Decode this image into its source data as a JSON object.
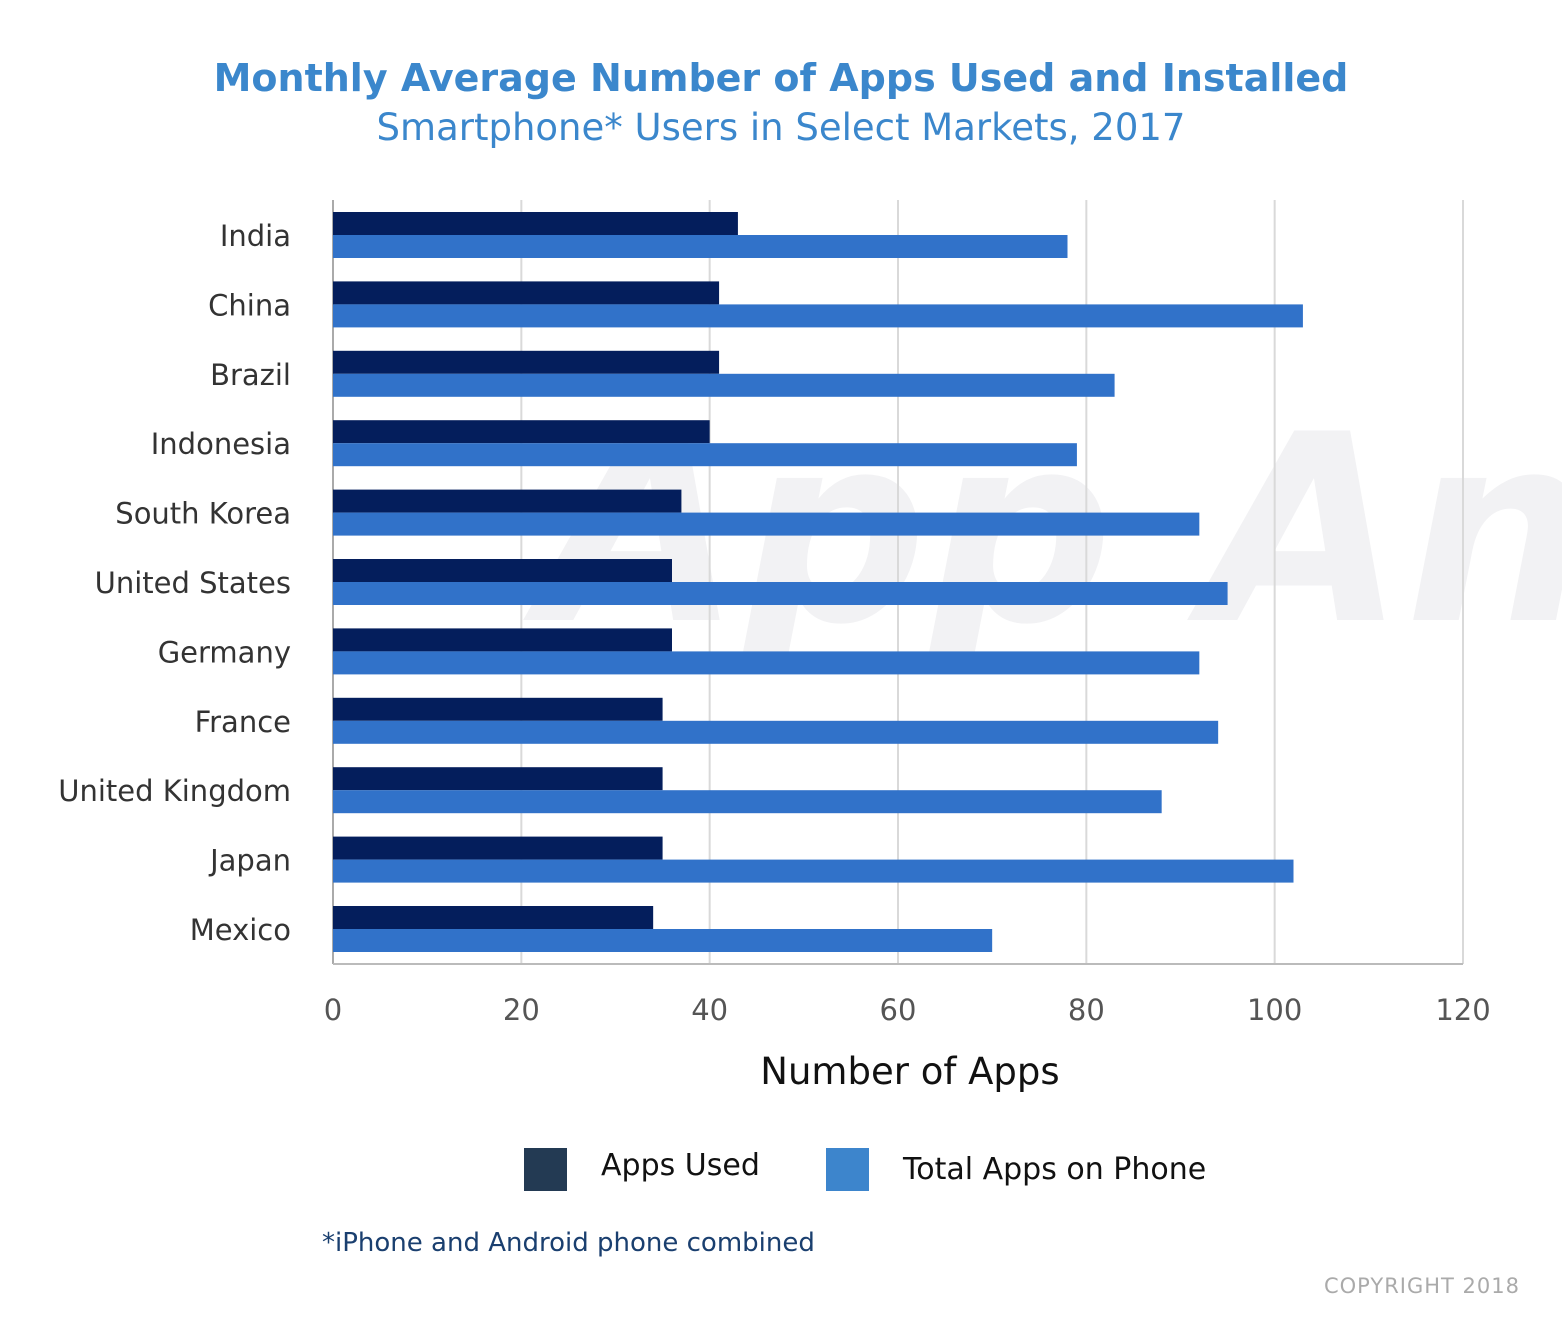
{
  "title": "Monthly Average Number of Apps Used and Installed",
  "subtitle": "Smartphone* Users in Select Markets, 2017",
  "footnote": "*iPhone and Android phone combined",
  "copyright": "COPYRIGHT 2018",
  "watermark": "App Annie",
  "colors": {
    "used": "#041e5c",
    "total": "#3172c9",
    "legend_used": "#233a53",
    "legend_total": "#3d85cc"
  },
  "chart_data": {
    "type": "bar",
    "orientation": "horizontal",
    "title": "Monthly Average Number of Apps Used and Installed",
    "subtitle": "Smartphone* Users in Select Markets, 2017",
    "xlabel": "Number of Apps",
    "ylabel": "",
    "xlim": [
      0,
      120
    ],
    "xticks": [
      "0",
      "20",
      "40",
      "60",
      "80",
      "100",
      "120"
    ],
    "grid": true,
    "legend_position": "bottom",
    "categories": [
      "India",
      "China",
      "Brazil",
      "Indonesia",
      "South Korea",
      "United States",
      "Germany",
      "France",
      "United Kingdom",
      "Japan",
      "Mexico"
    ],
    "series": [
      {
        "name": "Apps Used",
        "values": [
          43,
          41,
          41,
          40,
          37,
          36,
          36,
          35,
          35,
          35,
          34
        ]
      },
      {
        "name": "Total Apps on Phone",
        "values": [
          78,
          103,
          83,
          79,
          92,
          95,
          92,
          94,
          88,
          102,
          70
        ]
      }
    ]
  }
}
